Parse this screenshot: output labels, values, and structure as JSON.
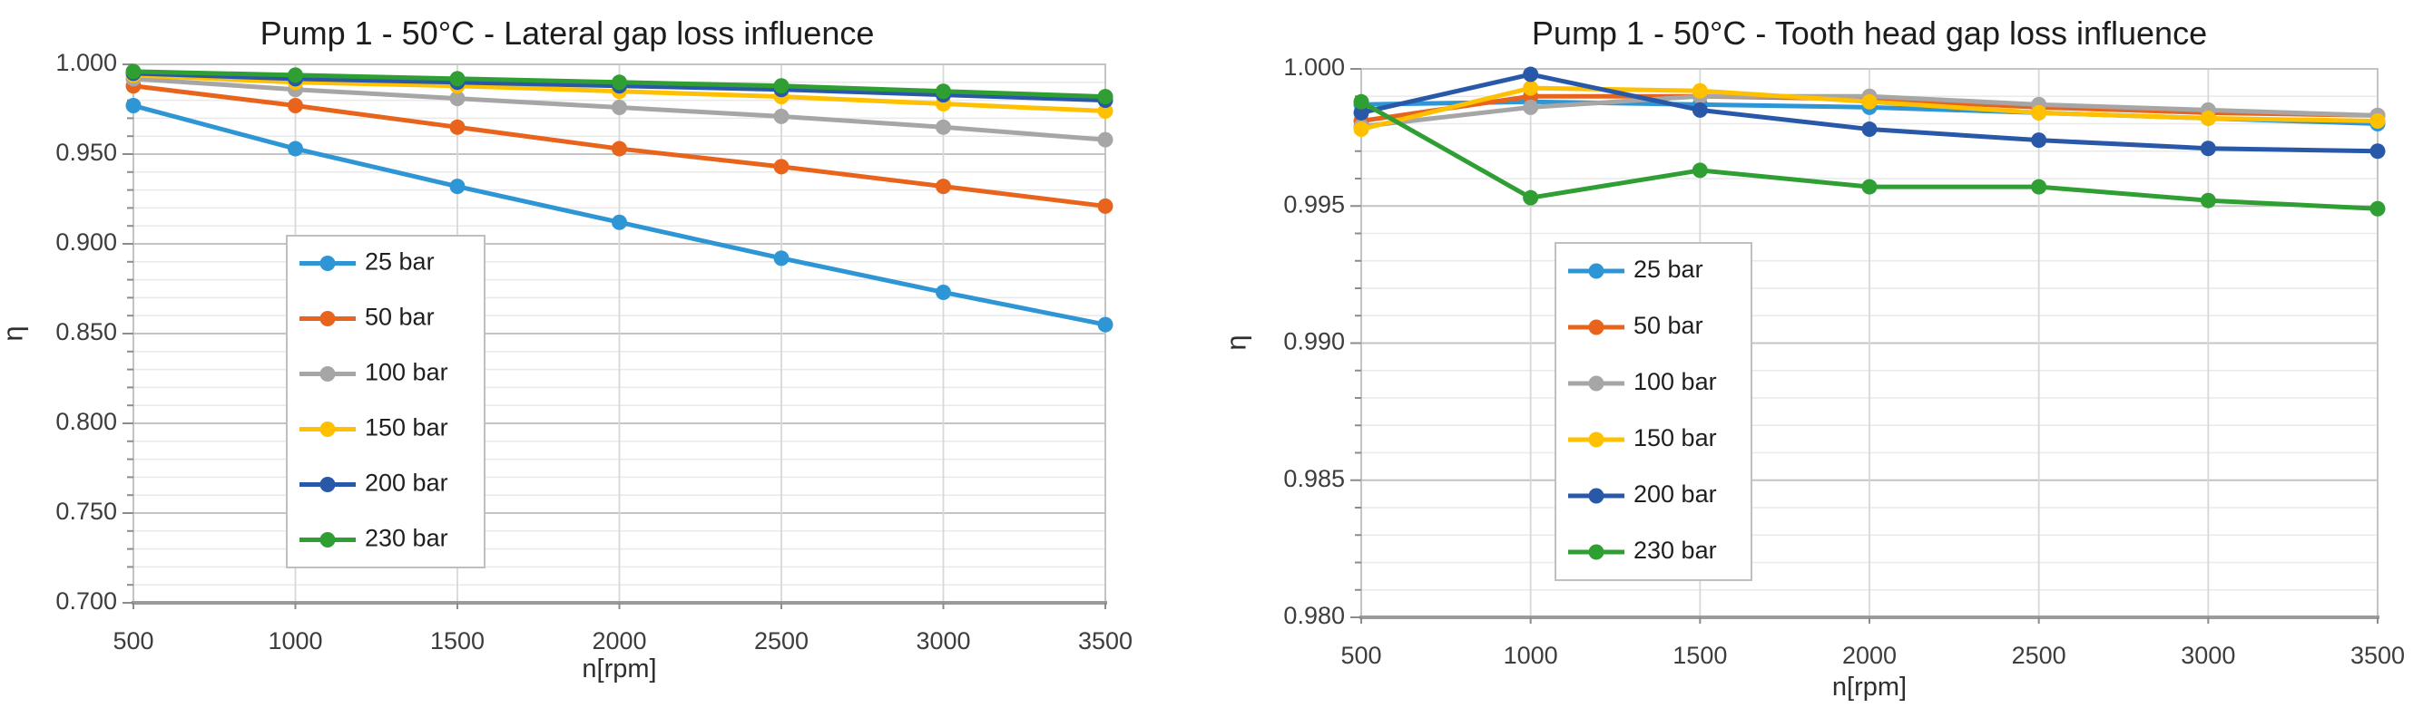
{
  "chart_data": [
    {
      "type": "line",
      "title": "Pump 1 - 50°C - Lateral gap loss influence",
      "xlabel": "n[rpm]",
      "ylabel": "η",
      "x": [
        500,
        1000,
        1500,
        2000,
        2500,
        3000,
        3500
      ],
      "xtick_labels": [
        "500",
        "1000",
        "1500",
        "2000",
        "2500",
        "3000",
        "3500"
      ],
      "ylim": [
        0.7,
        1.0
      ],
      "ytick_major_step": 0.05,
      "ytick_minor_step": 0.01,
      "ytick_labels": [
        "1.000",
        "0.950",
        "0.900",
        "0.850",
        "0.800",
        "0.750",
        "0.700"
      ],
      "grid": true,
      "legend_position": "inside-left",
      "series": [
        {
          "name": "25 bar",
          "color": "#2E96D5",
          "values": [
            0.977,
            0.953,
            0.932,
            0.912,
            0.892,
            0.873,
            0.855
          ]
        },
        {
          "name": "50 bar",
          "color": "#E8641C",
          "values": [
            0.988,
            0.977,
            0.965,
            0.953,
            0.943,
            0.932,
            0.921
          ]
        },
        {
          "name": "100 bar",
          "color": "#A6A6A6",
          "values": [
            0.992,
            0.986,
            0.981,
            0.976,
            0.971,
            0.965,
            0.958
          ]
        },
        {
          "name": "150 bar",
          "color": "#FFC000",
          "values": [
            0.994,
            0.99,
            0.988,
            0.985,
            0.982,
            0.978,
            0.974
          ]
        },
        {
          "name": "200 bar",
          "color": "#2A58A9",
          "values": [
            0.995,
            0.992,
            0.99,
            0.988,
            0.986,
            0.983,
            0.98
          ]
        },
        {
          "name": "230 bar",
          "color": "#2F9E33",
          "values": [
            0.996,
            0.994,
            0.992,
            0.99,
            0.988,
            0.985,
            0.982
          ]
        }
      ]
    },
    {
      "type": "line",
      "title": "Pump 1 - 50°C - Tooth head gap loss influence",
      "xlabel": "n[rpm]",
      "ylabel": "η",
      "x": [
        500,
        1000,
        1500,
        2000,
        2500,
        3000,
        3500
      ],
      "xtick_labels": [
        "500",
        "1000",
        "1500",
        "2000",
        "2500",
        "3000",
        "3500"
      ],
      "ylim": [
        0.98,
        1.0
      ],
      "ytick_major_step": 0.005,
      "ytick_minor_step": 0.001,
      "ytick_labels": [
        "1.000",
        "0.995",
        "0.990",
        "0.985",
        "0.980"
      ],
      "grid": true,
      "legend_position": "inside-left",
      "series": [
        {
          "name": "25 bar",
          "color": "#2E96D5",
          "values": [
            0.9987,
            0.9988,
            0.9987,
            0.9986,
            0.9984,
            0.9982,
            0.998
          ]
        },
        {
          "name": "50 bar",
          "color": "#E8641C",
          "values": [
            0.9981,
            0.999,
            0.999,
            0.9989,
            0.9986,
            0.9984,
            0.9983
          ]
        },
        {
          "name": "100 bar",
          "color": "#A6A6A6",
          "values": [
            0.9979,
            0.9986,
            0.999,
            0.999,
            0.9987,
            0.9985,
            0.9983
          ]
        },
        {
          "name": "150 bar",
          "color": "#FFC000",
          "values": [
            0.9978,
            0.9993,
            0.9992,
            0.9988,
            0.9984,
            0.9982,
            0.9981
          ]
        },
        {
          "name": "200 bar",
          "color": "#2A58A9",
          "values": [
            0.9984,
            0.9998,
            0.9985,
            0.9978,
            0.9974,
            0.9971,
            0.997
          ]
        },
        {
          "name": "230 bar",
          "color": "#2F9E33",
          "values": [
            0.9988,
            0.9953,
            0.9963,
            0.9957,
            0.9957,
            0.9952,
            0.9949
          ]
        }
      ]
    }
  ]
}
